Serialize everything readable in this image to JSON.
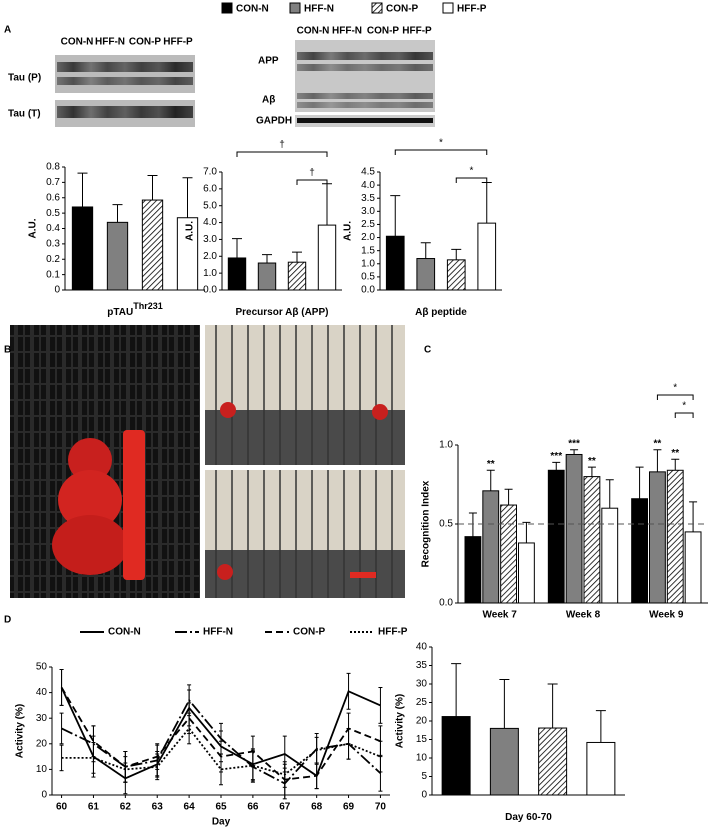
{
  "legend": [
    {
      "name": "CON-N",
      "fill": "black"
    },
    {
      "name": "HFF-N",
      "fill": "gray"
    },
    {
      "name": "CON-P",
      "fill": "hatch"
    },
    {
      "name": "HFF-P",
      "fill": "white"
    }
  ],
  "panels": [
    "A",
    "B",
    "C",
    "D"
  ],
  "blots": [
    {
      "lanes": [
        "CON-N",
        "HFF-N",
        "CON-P",
        "HFF-P"
      ],
      "rows": [
        "Tau (P)",
        "Tau (T)"
      ]
    },
    {
      "lanes": [
        "CON-N",
        "HFF-N",
        "CON-P",
        "HFF-P"
      ],
      "rows": [
        "APP",
        "Aβ",
        "GAPDH"
      ]
    }
  ],
  "chart_data": [
    {
      "type": "bar",
      "xlabel": "pTAU",
      "xlabel_superscript": "Thr231",
      "ylabel": "A.U.",
      "categories": [
        null,
        null,
        null,
        null
      ],
      "values": [
        0.54,
        0.44,
        0.585,
        0.47
      ],
      "errors": [
        0.22,
        0.115,
        0.16,
        0.26
      ],
      "fills": [
        "black",
        "gray",
        "hatch",
        "white"
      ],
      "ylim": [
        0,
        0.8
      ],
      "yticks": [
        0,
        0.1,
        0.2,
        0.3,
        0.4,
        0.5,
        0.6,
        0.7,
        0.8
      ]
    },
    {
      "type": "bar",
      "xlabel": "Precursor Aβ (APP)",
      "ylabel": "A.U.",
      "categories": [
        null,
        null,
        null,
        null
      ],
      "values": [
        1.9,
        1.6,
        1.65,
        3.85
      ],
      "errors": [
        1.15,
        0.5,
        0.6,
        2.45
      ],
      "fills": [
        "black",
        "gray",
        "hatch",
        "white"
      ],
      "ylim": [
        0,
        7
      ],
      "yticks": [
        {
          "value": 0,
          "label": "0.0"
        },
        {
          "value": 1,
          "label": "1.0"
        },
        {
          "value": 2,
          "label": "2.0"
        },
        {
          "value": 3,
          "label": "3.0"
        },
        {
          "value": 4,
          "label": "4.0"
        },
        {
          "value": 5,
          "label": "5.0"
        },
        {
          "value": 6,
          "label": "6.0"
        },
        {
          "value": 7,
          "label": "7.0"
        }
      ],
      "annotations": [
        "†",
        "†"
      ]
    },
    {
      "type": "bar",
      "xlabel": "Aβ peptide",
      "ylabel": "A.U.",
      "categories": [
        null,
        null,
        null,
        null
      ],
      "values": [
        2.05,
        1.2,
        1.15,
        2.55
      ],
      "errors": [
        1.55,
        0.6,
        0.4,
        1.55
      ],
      "fills": [
        "black",
        "gray",
        "hatch",
        "white"
      ],
      "ylim": [
        0,
        4.5
      ],
      "yticks": [
        {
          "value": 0,
          "label": "0.0"
        },
        0.5,
        {
          "value": 1,
          "label": "1.0"
        },
        1.5,
        {
          "value": 2,
          "label": "2.0"
        },
        2.5,
        {
          "value": 3,
          "label": "3.0"
        },
        3.5,
        {
          "value": 4,
          "label": "4.0"
        },
        4.5
      ],
      "annotations": [
        "*",
        "*"
      ]
    },
    {
      "type": "grouped_bar",
      "ylabel": "Recognition Index",
      "categories": [
        "Week 7",
        "Week 8",
        "Week 9"
      ],
      "series": [
        {
          "fill": "black",
          "values": [
            0.42,
            0.84,
            0.66
          ],
          "errors": [
            0.15,
            0.05,
            0.2
          ],
          "annotations": [
            null,
            "***",
            null
          ]
        },
        {
          "fill": "gray",
          "values": [
            0.71,
            0.94,
            0.83
          ],
          "errors": [
            0.13,
            0.03,
            0.14
          ],
          "annotations": [
            "**",
            "***",
            "**"
          ]
        },
        {
          "fill": "hatch",
          "values": [
            0.62,
            0.8,
            0.84
          ],
          "errors": [
            0.1,
            0.06,
            0.07
          ],
          "annotations": [
            null,
            "**",
            "**"
          ]
        },
        {
          "fill": "white",
          "values": [
            0.38,
            0.6,
            0.45
          ],
          "errors": [
            0.13,
            0.18,
            0.19
          ],
          "annotations": [
            null,
            null,
            null
          ]
        }
      ],
      "reference_line": 0.5,
      "ylim": [
        0,
        1
      ],
      "yticks": [
        {
          "value": 0,
          "label": "0.0"
        },
        0.5,
        {
          "value": 1,
          "label": "1.0"
        }
      ],
      "annotations": [
        "*",
        "*"
      ]
    },
    {
      "type": "line",
      "xlabel": "Day",
      "ylabel": "Activity (%)",
      "x": [
        60,
        61,
        62,
        63,
        64,
        65,
        66,
        67,
        68,
        69,
        70
      ],
      "xlim": [
        59.7,
        70.3
      ],
      "xticks": [
        60,
        61,
        62,
        63,
        64,
        65,
        66,
        67,
        68,
        69,
        70
      ],
      "ylim": [
        0,
        50
      ],
      "yticks": [
        0,
        10,
        20,
        30,
        40,
        50
      ],
      "series": [
        {
          "name": "CON-N",
          "dash": "solid",
          "values": [
            42,
            15,
            6.5,
            12,
            34,
            19,
            12,
            16,
            7.5,
            40.5,
            35
          ],
          "errors": [
            7,
            8,
            6,
            5,
            7,
            6,
            6,
            7,
            5,
            7,
            7
          ]
        },
        {
          "name": "HFF-N",
          "dash": "dashdot",
          "values": [
            26,
            20,
            11,
            13.5,
            37,
            22,
            11,
            4.5,
            18,
            20,
            8.5
          ],
          "errors": [
            6,
            7,
            6,
            6,
            6,
            6,
            6,
            6,
            6,
            6,
            7
          ]
        },
        {
          "name": "CON-P",
          "dash": "dashed",
          "values": [
            42,
            21,
            11,
            15,
            30,
            15,
            17,
            6,
            7.5,
            26,
            21
          ],
          "errors": [
            7,
            6,
            6,
            5,
            6,
            6,
            6,
            6,
            5,
            6,
            6
          ]
        },
        {
          "name": "HFF-P",
          "dash": "dotted",
          "values": [
            14.5,
            14.5,
            10,
            11,
            26,
            10,
            11.5,
            8,
            17.5,
            20,
            15
          ],
          "errors": [
            5,
            6,
            5,
            5,
            6,
            6,
            6,
            5,
            5,
            6,
            6
          ]
        }
      ]
    },
    {
      "type": "bar",
      "xlabel": "Day 60-70",
      "ylabel": "Activity (%)",
      "categories": [
        null,
        null,
        null,
        null
      ],
      "values": [
        21.2,
        18,
        18.1,
        14.2
      ],
      "errors": [
        14.3,
        13.2,
        11.9,
        8.6
      ],
      "fills": [
        "black",
        "gray",
        "hatch",
        "white"
      ],
      "ylim": [
        0,
        40
      ],
      "yticks": [
        0,
        5,
        10,
        15,
        20,
        25,
        30,
        35,
        40
      ]
    }
  ]
}
